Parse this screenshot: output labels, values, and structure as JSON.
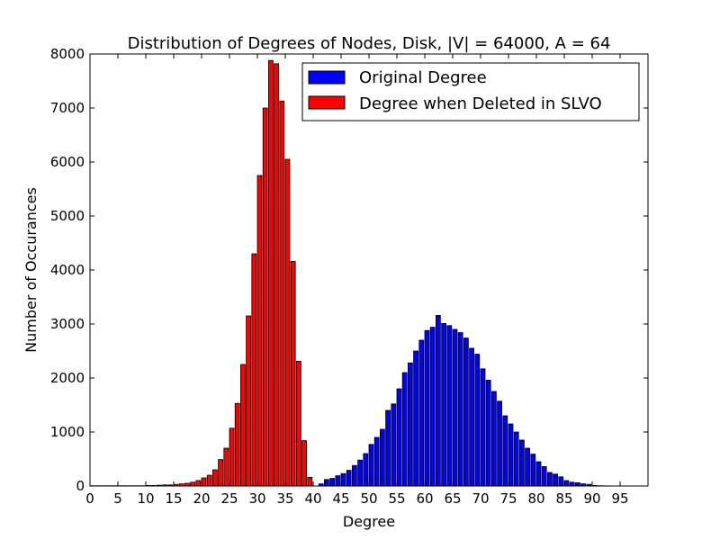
{
  "chart_data": {
    "type": "bar",
    "title": "Distribution of Degrees of Nodes, Disk, |V| = 64000, A = 64",
    "xlabel": "Degree",
    "ylabel": "Number of Occurances",
    "xlim": [
      0,
      100
    ],
    "ylim": [
      0,
      8000
    ],
    "xticks": [
      "0",
      "5",
      "10",
      "15",
      "20",
      "25",
      "30",
      "35",
      "40",
      "45",
      "50",
      "55",
      "60",
      "65",
      "70",
      "75",
      "80",
      "85",
      "90",
      "95"
    ],
    "yticks": [
      "0",
      "1000",
      "2000",
      "3000",
      "4000",
      "5000",
      "6000",
      "7000",
      "8000"
    ],
    "grid": false,
    "legend_position": "top-right",
    "x": [
      0,
      1,
      2,
      3,
      4,
      5,
      6,
      7,
      8,
      9,
      10,
      11,
      12,
      13,
      14,
      15,
      16,
      17,
      18,
      19,
      20,
      21,
      22,
      23,
      24,
      25,
      26,
      27,
      28,
      29,
      30,
      31,
      32,
      33,
      34,
      35,
      36,
      37,
      38,
      39,
      40,
      41,
      42,
      43,
      44,
      45,
      46,
      47,
      48,
      49,
      50,
      51,
      52,
      53,
      54,
      55,
      56,
      57,
      58,
      59,
      60,
      61,
      62,
      63,
      64,
      65,
      66,
      67,
      68,
      69,
      70,
      71,
      72,
      73,
      74,
      75,
      76,
      77,
      78,
      79,
      80,
      81,
      82,
      83,
      84,
      85,
      86,
      87,
      88,
      89,
      90,
      91,
      92,
      93,
      94,
      95,
      96,
      97,
      98,
      99
    ],
    "series": [
      {
        "name": "Original Degree",
        "color": "#0000ff",
        "values": [
          0,
          0,
          0,
          0,
          0,
          0,
          0,
          0,
          0,
          0,
          0,
          0,
          0,
          0,
          0,
          0,
          0,
          0,
          0,
          0,
          0,
          0,
          0,
          0,
          0,
          0,
          0,
          0,
          0,
          0,
          0,
          0,
          0,
          0,
          0,
          0,
          0,
          0,
          0,
          0,
          0,
          40,
          120,
          140,
          190,
          230,
          290,
          380,
          480,
          600,
          770,
          900,
          1050,
          1400,
          1520,
          1800,
          2100,
          2280,
          2500,
          2700,
          2880,
          2940,
          3160,
          3010,
          2970,
          2900,
          2840,
          2740,
          2550,
          2440,
          2170,
          1960,
          1750,
          1570,
          1300,
          1150,
          1000,
          850,
          700,
          590,
          450,
          360,
          250,
          220,
          170,
          100,
          70,
          60,
          40,
          30,
          10,
          5,
          3,
          0,
          0,
          0,
          0,
          0,
          0,
          0
        ]
      },
      {
        "name": "Degree when Deleted in SLVO",
        "color": "#ff0000",
        "values": [
          5,
          5,
          5,
          5,
          5,
          5,
          5,
          5,
          5,
          5,
          10,
          10,
          15,
          20,
          20,
          30,
          40,
          50,
          70,
          100,
          150,
          200,
          300,
          490,
          700,
          1070,
          1530,
          2250,
          3150,
          4300,
          5750,
          7000,
          7880,
          7820,
          7130,
          6050,
          4160,
          2310,
          840,
          160,
          0,
          0,
          0,
          0,
          0,
          0,
          0,
          0,
          0,
          0,
          0,
          0,
          0,
          0,
          0,
          0,
          0,
          0,
          0,
          0,
          0,
          0,
          0,
          0,
          0,
          0,
          0,
          0,
          0,
          0,
          0,
          0,
          0,
          0,
          0,
          0,
          0,
          0,
          0,
          0,
          0,
          0,
          0,
          0,
          0,
          0,
          0,
          0,
          0,
          0,
          0,
          0,
          0,
          0,
          0,
          0,
          0,
          0,
          0,
          0
        ]
      }
    ]
  }
}
